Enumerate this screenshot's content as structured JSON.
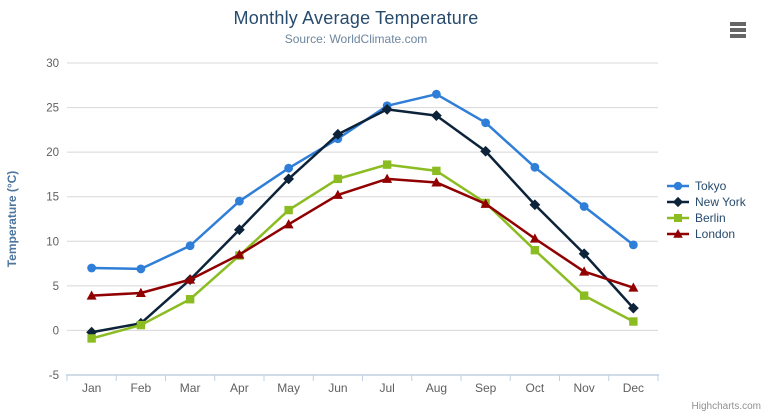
{
  "chart_data": {
    "type": "line",
    "title": "Monthly Average Temperature",
    "subtitle": "Source: WorldClimate.com",
    "xlabel": "",
    "ylabel": "Temperature (°C)",
    "ylim": [
      -5,
      30
    ],
    "ytick_step": 5,
    "grid": true,
    "legend_position": "right",
    "categories": [
      "Jan",
      "Feb",
      "Mar",
      "Apr",
      "May",
      "Jun",
      "Jul",
      "Aug",
      "Sep",
      "Oct",
      "Nov",
      "Dec"
    ],
    "series": [
      {
        "name": "Tokyo",
        "color": "#2f7ed8",
        "symbol": "circle",
        "values": [
          7.0,
          6.9,
          9.5,
          14.5,
          18.2,
          21.5,
          25.2,
          26.5,
          23.3,
          18.3,
          13.9,
          9.6
        ]
      },
      {
        "name": "New York",
        "color": "#0d233a",
        "symbol": "diamond",
        "values": [
          -0.2,
          0.8,
          5.7,
          11.3,
          17.0,
          22.0,
          24.8,
          24.1,
          20.1,
          14.1,
          8.6,
          2.5
        ]
      },
      {
        "name": "Berlin",
        "color": "#8bbc21",
        "symbol": "square",
        "values": [
          -0.9,
          0.6,
          3.5,
          8.4,
          13.5,
          17.0,
          18.6,
          17.9,
          14.3,
          9.0,
          3.9,
          1.0
        ]
      },
      {
        "name": "London",
        "color": "#910000",
        "symbol": "triangle",
        "values": [
          3.9,
          4.2,
          5.7,
          8.5,
          11.9,
          15.2,
          17.0,
          16.6,
          14.2,
          10.3,
          6.6,
          4.8
        ]
      }
    ]
  },
  "colors": {
    "title": "#274b6d",
    "subtitle": "#6d869f",
    "axis_label": "#606060",
    "axis_title": "#4d759e",
    "grid": "#d8d8d8",
    "axis_line": "#c0d0e0",
    "legend_text": "#274b6d",
    "credits_text": "#909090",
    "menu_icon": "#666666"
  },
  "menu": {
    "icon": "hamburger-menu-icon"
  },
  "credits": {
    "label": "Highcharts.com"
  }
}
